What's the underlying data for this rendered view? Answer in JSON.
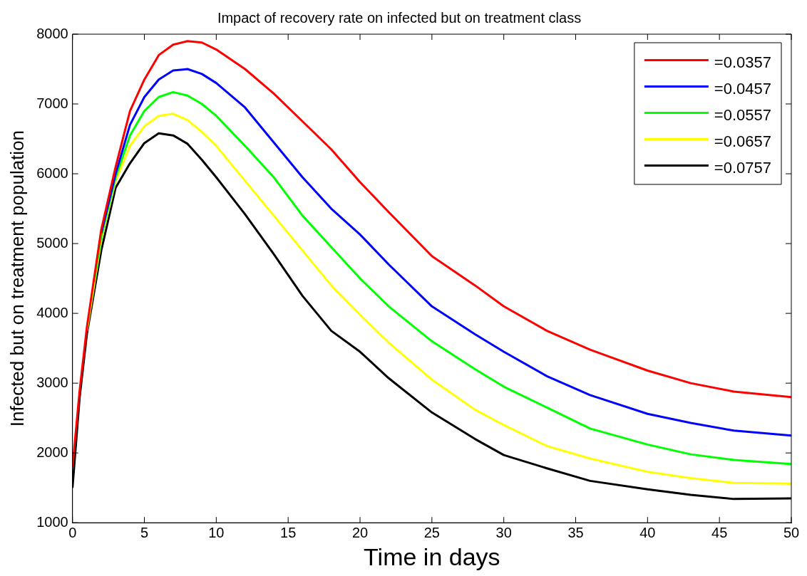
{
  "chart_data": {
    "type": "line",
    "title": "Impact of recovery rate on infected but on treatment class",
    "xlabel": "Time in days",
    "ylabel": "Infected but on treatment population",
    "x": [
      0,
      0.5,
      1,
      1.5,
      2,
      3,
      4,
      5,
      6,
      7,
      8,
      9,
      10,
      12,
      14,
      16,
      18,
      20,
      22,
      25,
      28,
      30,
      33,
      36,
      40,
      43,
      46,
      50
    ],
    "series": [
      {
        "name": "=0.0357",
        "color": "#ff0000",
        "values": [
          1800,
          2900,
          3800,
          4500,
          5200,
          6100,
          6900,
          7350,
          7700,
          7850,
          7900,
          7880,
          7780,
          7500,
          7150,
          6750,
          6350,
          5880,
          5450,
          4820,
          4400,
          4100,
          3750,
          3480,
          3180,
          3000,
          2880,
          2800
        ]
      },
      {
        "name": "=0.0457",
        "color": "#0000ff",
        "values": [
          null,
          null,
          null,
          null,
          5150,
          6000,
          6700,
          7100,
          7350,
          7480,
          7500,
          7430,
          7300,
          6950,
          6450,
          5950,
          5500,
          5130,
          4700,
          4100,
          3700,
          3450,
          3100,
          2830,
          2560,
          2430,
          2320,
          2250
        ]
      },
      {
        "name": "=0.0557",
        "color": "#00ff00",
        "values": [
          null,
          null,
          null,
          4450,
          5100,
          5950,
          6550,
          6900,
          7100,
          7170,
          7120,
          7000,
          6830,
          6400,
          5950,
          5400,
          4950,
          4500,
          4100,
          3600,
          3200,
          2950,
          2650,
          2350,
          2120,
          1980,
          1900,
          1840
        ]
      },
      {
        "name": "=0.0657",
        "color": "#ffff00",
        "values": [
          null,
          null,
          3750,
          4400,
          5050,
          5900,
          6400,
          6680,
          6830,
          6860,
          6770,
          6600,
          6400,
          5900,
          5400,
          4900,
          4400,
          3980,
          3580,
          3050,
          2620,
          2400,
          2100,
          1920,
          1730,
          1640,
          1570,
          1560
        ]
      },
      {
        "name": "=0.0757",
        "color": "#000000",
        "values": [
          1500,
          2800,
          3700,
          4300,
          4900,
          5800,
          6150,
          6440,
          6580,
          6550,
          6430,
          6200,
          5950,
          5420,
          4850,
          4250,
          3750,
          3450,
          3070,
          2580,
          2200,
          1970,
          1780,
          1600,
          1480,
          1400,
          1340,
          1350
        ]
      }
    ],
    "xlim": [
      0,
      50
    ],
    "xticks": [
      0,
      5,
      10,
      15,
      20,
      25,
      30,
      35,
      40,
      45,
      50
    ],
    "ylim": [
      1000,
      8000
    ],
    "yticks": [
      1000,
      2000,
      3000,
      4000,
      5000,
      6000,
      7000,
      8000
    ],
    "grid": false,
    "legend": "top right",
    "marker": "none",
    "line_style": "solid"
  }
}
